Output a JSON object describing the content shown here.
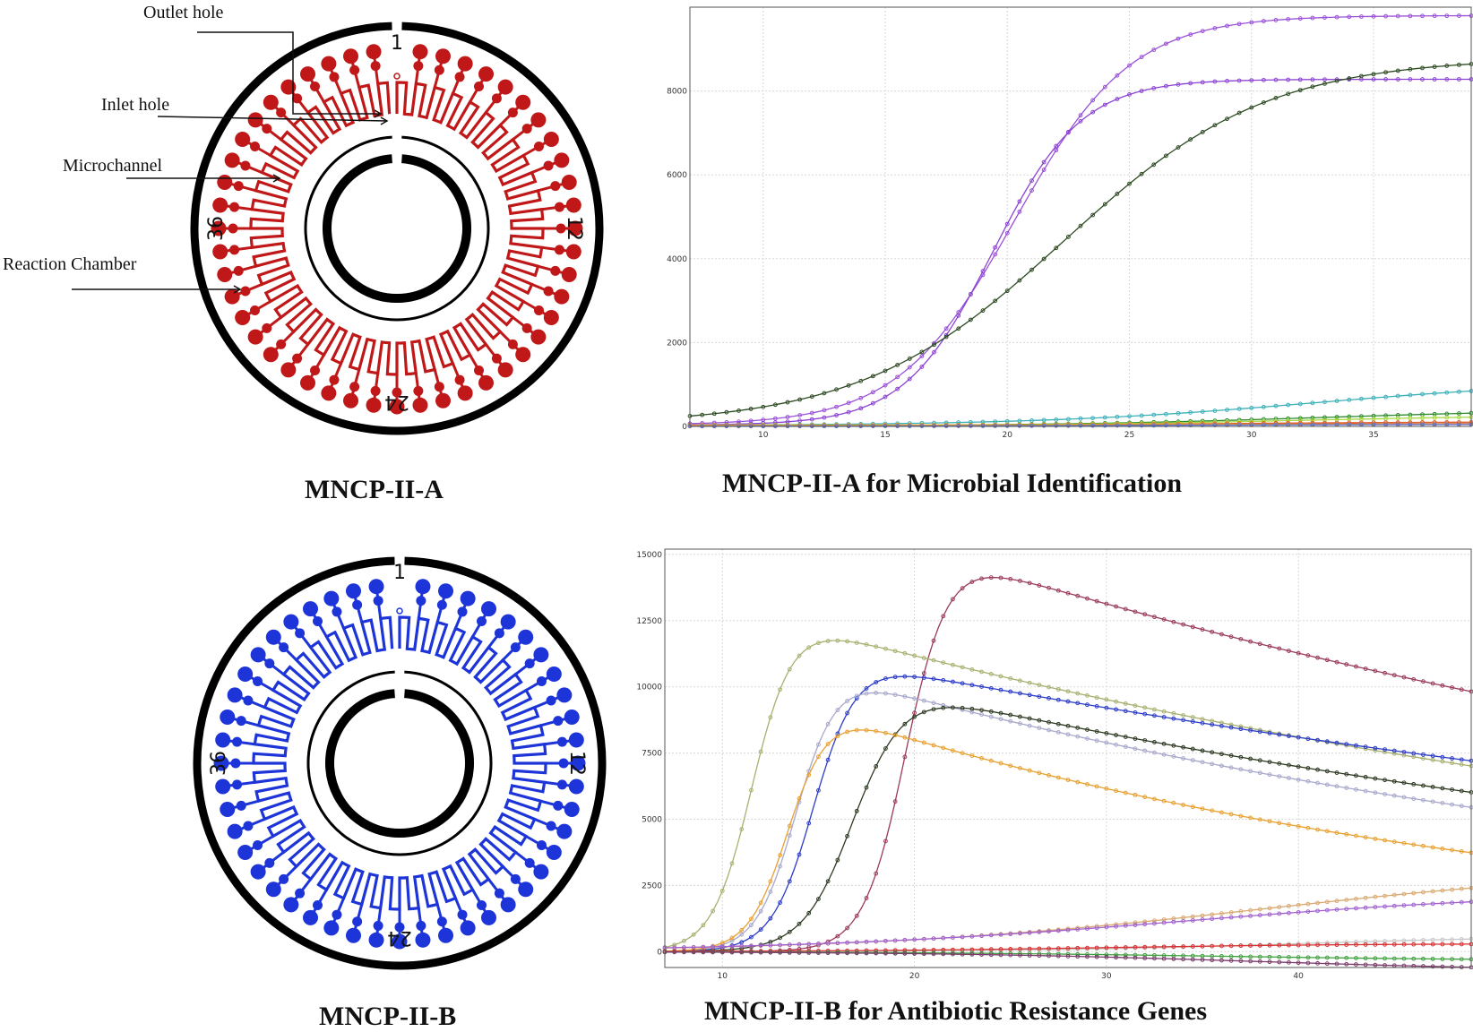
{
  "colors": {
    "chip_a": "#c01818",
    "chip_b": "#1c34d8",
    "ring": "#000000"
  },
  "chip_a": {
    "caption": "MNCP-II-A",
    "numbers": {
      "n1": "1",
      "n12": "12",
      "n24": "24",
      "n36": "36"
    },
    "callouts": {
      "outlet": "Outlet hole",
      "inlet": "Inlet hole",
      "micro": "Microchannel",
      "reaction": "Reaction Chamber"
    }
  },
  "chip_b": {
    "caption": "MNCP-II-B",
    "numbers": {
      "n1": "1",
      "n12": "12",
      "n24": "24",
      "n36": "36"
    }
  },
  "chart_data": [
    {
      "type": "line",
      "title": "MNCP-II-A for  Microbial Identification",
      "xlim": [
        7,
        39
      ],
      "ylim": [
        0,
        10000
      ],
      "xticks": [
        10,
        15,
        20,
        25,
        30,
        35
      ],
      "yticks": [
        0,
        2000,
        4000,
        6000,
        8000
      ],
      "grid": true,
      "series": [
        {
          "color": "#9a52d8",
          "base": 30,
          "top": 9800,
          "mid": 20.3,
          "k": 0.42,
          "decay": 0
        },
        {
          "color": "#8c42d4",
          "base": 30,
          "top": 8280,
          "mid": 19.4,
          "k": 0.55,
          "decay": 0
        },
        {
          "color": "#2d4a22",
          "base": 30,
          "top": 8800,
          "mid": 22.3,
          "k": 0.24,
          "decay": 0
        },
        {
          "color": "#3bb0b8",
          "base": 20,
          "top": 1100,
          "mid": 32.5,
          "k": 0.18,
          "decay": 0
        },
        {
          "color": "#2e8c2e",
          "base": 10,
          "top": 420,
          "mid": 33,
          "k": 0.18,
          "decay": 0
        },
        {
          "color": "#a8d840",
          "base": 10,
          "top": 280,
          "mid": 32,
          "k": 0.18,
          "decay": 0
        },
        {
          "color": "#e06030",
          "base": 20,
          "top": 110,
          "mid": 28,
          "k": 0.2,
          "decay": 0
        },
        {
          "color": "#d82020",
          "base": 10,
          "top": 70,
          "mid": 26,
          "k": 0.2,
          "decay": 0
        },
        {
          "color": "#e8a020",
          "base": 30,
          "top": 60,
          "mid": 26,
          "k": 0.2,
          "decay": 0
        },
        {
          "color": "#5870d8",
          "base": 5,
          "top": 50,
          "mid": 27,
          "k": 0.2,
          "decay": 0
        }
      ]
    },
    {
      "type": "line",
      "title": "MNCP-II-B for  Antibiotic Resistance Genes",
      "xlim": [
        7,
        49
      ],
      "ylim": [
        -600,
        15200
      ],
      "xticks": [
        10,
        20,
        30,
        40
      ],
      "yticks": [
        0,
        2500,
        5000,
        7500,
        10000,
        12500,
        15000
      ],
      "grid": true,
      "series": [
        {
          "color": "#9a3a5a",
          "base": 0,
          "top": 15400,
          "mid": 19.6,
          "k": 0.9,
          "decay": 0.0153
        },
        {
          "color": "#a8b070",
          "base": 0,
          "top": 12800,
          "mid": 11.6,
          "k": 0.95,
          "decay": 0.0161
        },
        {
          "color": "#2c3cc8",
          "base": 0,
          "top": 11200,
          "mid": 14.8,
          "k": 0.9,
          "decay": 0.0129
        },
        {
          "color": "#a8a8cc",
          "base": 0,
          "top": 10800,
          "mid": 13.9,
          "k": 0.95,
          "decay": 0.0195
        },
        {
          "color": "#2d3a22",
          "base": 0,
          "top": 10250,
          "mid": 16.9,
          "k": 0.75,
          "decay": 0.0166
        },
        {
          "color": "#e8a030",
          "base": 0,
          "top": 9500,
          "mid": 13.5,
          "k": 0.95,
          "decay": 0.0263
        },
        {
          "color": "#d8a870",
          "base": 0,
          "top": 3200,
          "mid": 38,
          "k": 0.1,
          "decay": 0
        },
        {
          "color": "#a060d0",
          "base": 0,
          "top": 2300,
          "mid": 34,
          "k": 0.1,
          "decay": 0
        },
        {
          "color": "#c8c8c8",
          "base": 0,
          "top": 600,
          "mid": 40,
          "k": 0.15,
          "decay": 0
        },
        {
          "color": "#d83030",
          "base": 0,
          "top": 300,
          "mid": 30,
          "k": 0.15,
          "decay": 0
        },
        {
          "color": "#40a040",
          "base": 0,
          "top": -350,
          "mid": 36,
          "k": 0.12,
          "decay": 0
        },
        {
          "color": "#7a3a6a",
          "base": 0,
          "top": -750,
          "mid": 38,
          "k": 0.12,
          "decay": 0
        }
      ]
    }
  ]
}
